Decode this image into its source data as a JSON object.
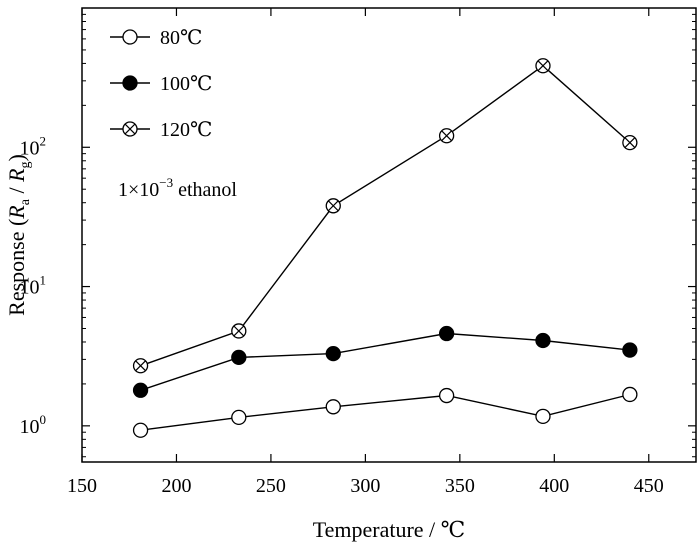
{
  "chart_data": {
    "type": "line",
    "xlabel": "Temperature / ℃",
    "ylabel_parts": {
      "prefix": "Response (",
      "num_symbol": "R",
      "num_sub": "a",
      "separator": " / ",
      "den_symbol": "R",
      "den_sub": "g",
      "suffix": ")"
    },
    "yscale": "log",
    "xlim": [
      150,
      475
    ],
    "ylim": [
      0.55,
      1000
    ],
    "xticks": [
      150,
      200,
      250,
      300,
      350,
      400,
      450
    ],
    "xtick_labels": [
      "150",
      "200",
      "250",
      "300",
      "350",
      "400",
      "450"
    ],
    "yticks": [
      {
        "value": 1,
        "base": "10",
        "exp": "0"
      },
      {
        "value": 10,
        "base": "10",
        "exp": "1"
      },
      {
        "value": 100,
        "base": "10",
        "exp": "2"
      }
    ],
    "legend_position": "top-left",
    "annotation": {
      "pre": "1×10",
      "exp": "−3",
      "post": " ethanol"
    },
    "series": [
      {
        "name": "80℃",
        "marker": "open-circle",
        "x": [
          181,
          233,
          283,
          343,
          394,
          440
        ],
        "y": [
          0.93,
          1.15,
          1.37,
          1.65,
          1.17,
          1.68
        ]
      },
      {
        "name": "100℃",
        "marker": "filled-circle",
        "x": [
          181,
          233,
          283,
          343,
          394,
          440
        ],
        "y": [
          1.8,
          3.1,
          3.3,
          4.6,
          4.1,
          3.5
        ]
      },
      {
        "name": "120℃",
        "marker": "crossed-circle",
        "x": [
          181,
          233,
          283,
          343,
          394,
          440
        ],
        "y": [
          2.7,
          4.8,
          38,
          121,
          385,
          108
        ]
      }
    ]
  },
  "colors": {
    "line": "#000000",
    "background": "#ffffff"
  }
}
